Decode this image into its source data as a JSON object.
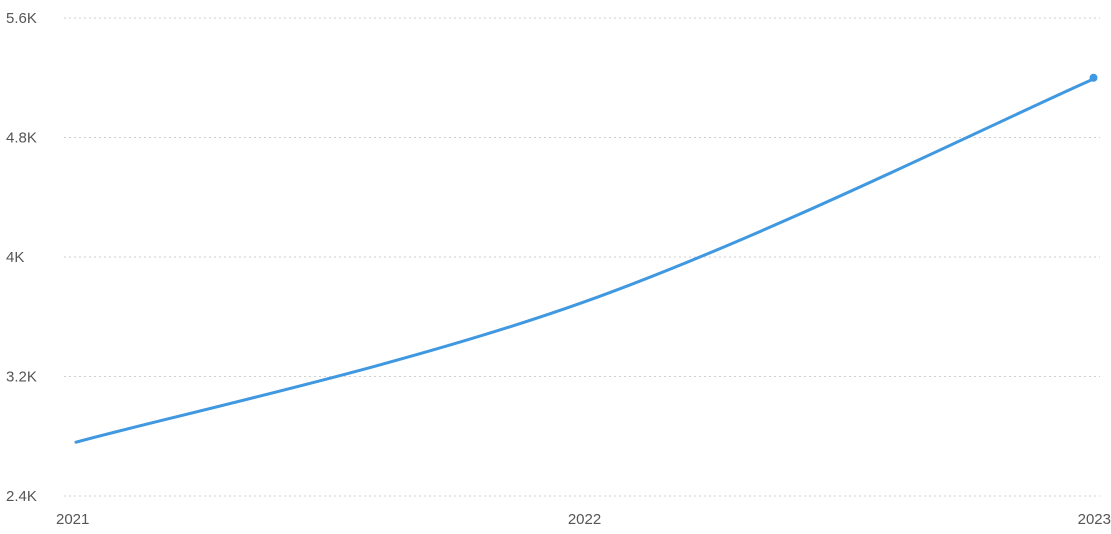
{
  "chart_data": {
    "type": "line",
    "title": "",
    "xlabel": "",
    "ylabel": "",
    "x": [
      "2021",
      "2022",
      "2023"
    ],
    "series": [
      {
        "values": [
          2760,
          3700,
          5190
        ],
        "color": "#3f98e0"
      }
    ],
    "ylim": [
      2400,
      5600
    ],
    "y_ticks": [
      {
        "value": 2400,
        "label": "2.4K"
      },
      {
        "value": 3200,
        "label": "3.2K"
      },
      {
        "value": 4000,
        "label": "4K"
      },
      {
        "value": 4800,
        "label": "4.8K"
      },
      {
        "value": 5600,
        "label": "5.6K"
      }
    ],
    "x_ticks": [
      "2021",
      "2022",
      "2023"
    ],
    "grid": true,
    "grid_axis": "y",
    "legend": "none",
    "curve": "smooth",
    "end_marker": true
  }
}
